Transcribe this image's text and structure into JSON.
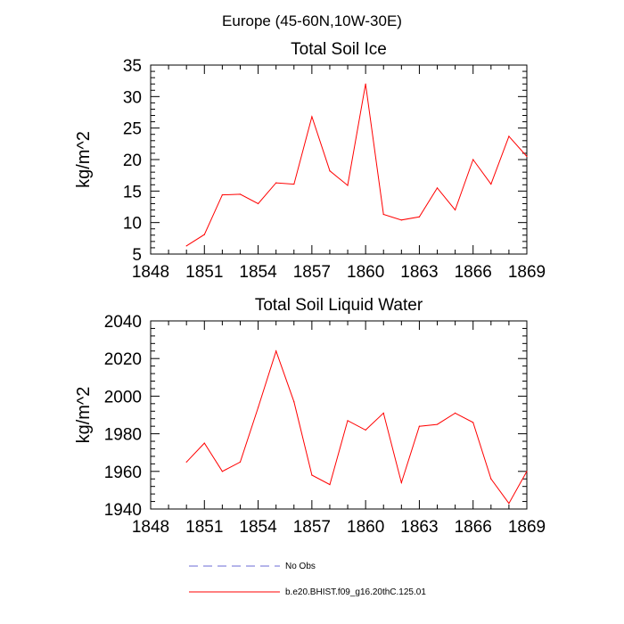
{
  "figure": {
    "suptitle": "Europe (45-60N,10W-30E)"
  },
  "colors": {
    "axis": "#000000",
    "series": "#ff0000",
    "no_obs": "#6b6bd6"
  },
  "legend": {
    "entries": [
      {
        "name": "No Obs",
        "style": "dashed",
        "color": "#6b6bd6"
      },
      {
        "name": "b.e20.BHIST.f09_g16.20thC.125.01",
        "style": "solid",
        "color": "#ff0000"
      }
    ]
  },
  "chart_data": [
    {
      "type": "line",
      "title": "Total Soil Ice",
      "xlabel": "",
      "ylabel": "kg/m^2",
      "xlim": [
        1848,
        1869
      ],
      "ylim": [
        5,
        35
      ],
      "xticks": [
        1848,
        1851,
        1854,
        1857,
        1860,
        1863,
        1866,
        1869
      ],
      "yticks": [
        5,
        10,
        15,
        20,
        25,
        30,
        35
      ],
      "grid": false,
      "series": [
        {
          "name": "b.e20.BHIST.f09_g16.20thC.125.01",
          "x": [
            1850,
            1851,
            1852,
            1853,
            1854,
            1855,
            1856,
            1857,
            1858,
            1859,
            1860,
            1861,
            1862,
            1863,
            1864,
            1865,
            1866,
            1867,
            1868,
            1869
          ],
          "y": [
            6.3,
            8.1,
            14.4,
            14.5,
            13.0,
            16.3,
            16.1,
            26.8,
            18.2,
            15.9,
            32.0,
            11.3,
            10.4,
            10.9,
            15.5,
            12.0,
            20.0,
            16.1,
            23.7,
            20.5
          ]
        }
      ]
    },
    {
      "type": "line",
      "title": "Total Soil Liquid Water",
      "xlabel": "",
      "ylabel": "kg/m^2",
      "xlim": [
        1848,
        1869
      ],
      "ylim": [
        1940,
        2040
      ],
      "xticks": [
        1848,
        1851,
        1854,
        1857,
        1860,
        1863,
        1866,
        1869
      ],
      "yticks": [
        1940,
        1960,
        1980,
        2000,
        2020,
        2040
      ],
      "grid": false,
      "series": [
        {
          "name": "b.e20.BHIST.f09_g16.20thC.125.01",
          "x": [
            1850,
            1851,
            1852,
            1853,
            1854,
            1855,
            1856,
            1857,
            1858,
            1859,
            1860,
            1861,
            1862,
            1863,
            1864,
            1865,
            1866,
            1867,
            1868,
            1869
          ],
          "y": [
            1965,
            1975,
            1960,
            1965,
            1994,
            2024,
            1997,
            1958,
            1953,
            1987,
            1982,
            1991,
            1954,
            1984,
            1985,
            1991,
            1986,
            1956,
            1943,
            1960
          ]
        }
      ]
    }
  ]
}
